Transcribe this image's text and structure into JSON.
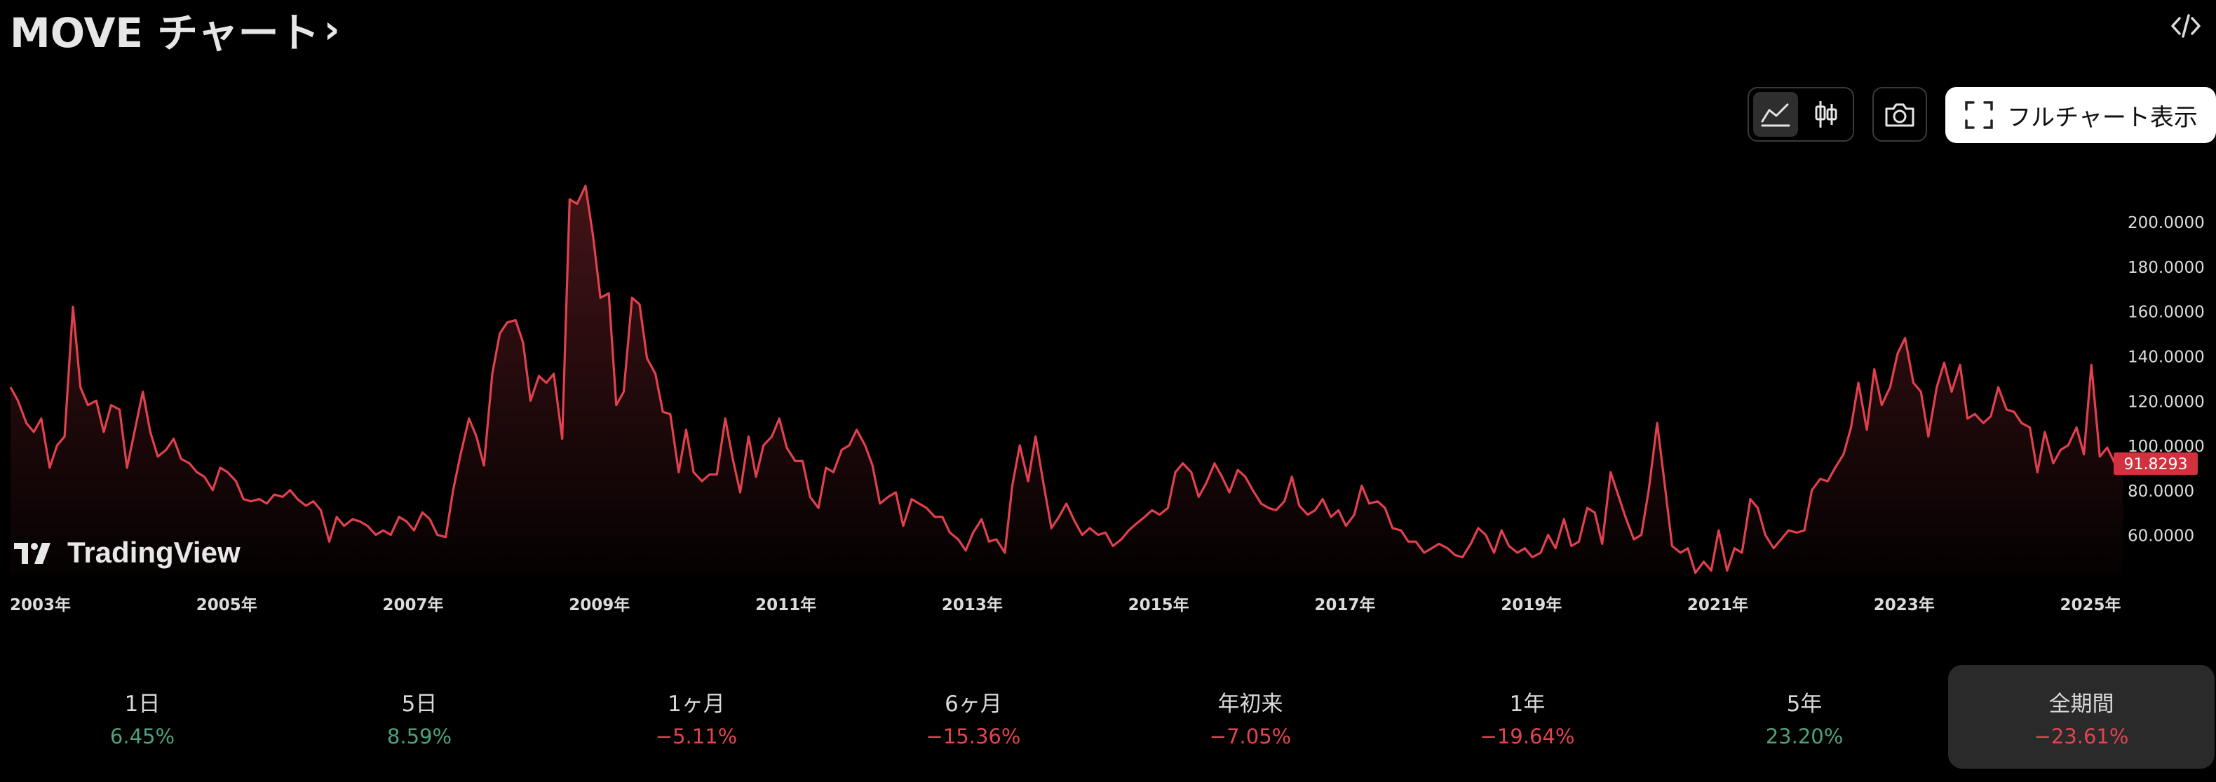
{
  "header": {
    "title": "MOVE チャート",
    "title_chevron": "›",
    "embed_icon": "code-embed-icon"
  },
  "toolbar": {
    "area_chart_icon": "area-chart-icon",
    "candle_chart_icon": "candlestick-chart-icon",
    "camera_icon": "camera-icon",
    "fullscreen_icon": "fullscreen-frame-icon",
    "full_chart_label": "フルチャート表示"
  },
  "watermark": "TradingView",
  "periods": [
    {
      "label": "1日",
      "value": "6.45%",
      "sign": "pos"
    },
    {
      "label": "5日",
      "value": "8.59%",
      "sign": "pos"
    },
    {
      "label": "1ヶ月",
      "value": "−5.11%",
      "sign": "neg"
    },
    {
      "label": "6ヶ月",
      "value": "−15.36%",
      "sign": "neg"
    },
    {
      "label": "年初来",
      "value": "−7.05%",
      "sign": "neg"
    },
    {
      "label": "1年",
      "value": "−19.64%",
      "sign": "neg"
    },
    {
      "label": "5年",
      "value": "23.20%",
      "sign": "pos"
    },
    {
      "label": "全期間",
      "value": "−23.61%",
      "sign": "neg",
      "active": true
    }
  ],
  "colors": {
    "line": "#e0414d",
    "positive": "#4fa07c",
    "negative": "#e0454f",
    "background": "#000000"
  },
  "chart_data": {
    "type": "area",
    "title": "",
    "xlabel": "",
    "ylabel": "",
    "x_tick_labels": [
      "2003年",
      "2005年",
      "2007年",
      "2009年",
      "2011年",
      "2013年",
      "2015年",
      "2017年",
      "2019年",
      "2021年",
      "2023年",
      "2025年"
    ],
    "y_tick_labels": [
      "60.0000",
      "80.0000",
      "100.0000",
      "120.0000",
      "140.0000",
      "160.0000",
      "180.0000",
      "200.0000"
    ],
    "y_ticks": [
      60,
      80,
      100,
      120,
      140,
      160,
      180,
      200
    ],
    "xlim": [
      2003.0,
      2025.35
    ],
    "ylim": [
      42,
      222
    ],
    "last_value": 91.8293,
    "last_value_label": "91.8293",
    "grid": false,
    "series": [
      {
        "points": [
          [
            2003.0,
            126
          ],
          [
            2003.08,
            120
          ],
          [
            2003.17,
            110
          ],
          [
            2003.25,
            106
          ],
          [
            2003.33,
            112
          ],
          [
            2003.42,
            90
          ],
          [
            2003.5,
            100
          ],
          [
            2003.58,
            104
          ],
          [
            2003.67,
            162
          ],
          [
            2003.75,
            126
          ],
          [
            2003.83,
            118
          ],
          [
            2003.92,
            120
          ],
          [
            2004.0,
            106
          ],
          [
            2004.08,
            118
          ],
          [
            2004.17,
            116
          ],
          [
            2004.25,
            90
          ],
          [
            2004.33,
            106
          ],
          [
            2004.42,
            124
          ],
          [
            2004.5,
            106
          ],
          [
            2004.58,
            95
          ],
          [
            2004.67,
            98
          ],
          [
            2004.75,
            103
          ],
          [
            2004.83,
            94
          ],
          [
            2004.92,
            92
          ],
          [
            2005.0,
            88
          ],
          [
            2005.08,
            86
          ],
          [
            2005.17,
            80
          ],
          [
            2005.25,
            90
          ],
          [
            2005.33,
            88
          ],
          [
            2005.42,
            84
          ],
          [
            2005.5,
            76
          ],
          [
            2005.58,
            75
          ],
          [
            2005.67,
            76
          ],
          [
            2005.75,
            74
          ],
          [
            2005.83,
            78
          ],
          [
            2005.92,
            77
          ],
          [
            2006.0,
            80
          ],
          [
            2006.08,
            76
          ],
          [
            2006.17,
            73
          ],
          [
            2006.25,
            75
          ],
          [
            2006.33,
            71
          ],
          [
            2006.42,
            57
          ],
          [
            2006.5,
            68
          ],
          [
            2006.58,
            64
          ],
          [
            2006.67,
            67
          ],
          [
            2006.75,
            66
          ],
          [
            2006.83,
            64
          ],
          [
            2006.92,
            60
          ],
          [
            2007.0,
            62
          ],
          [
            2007.08,
            60
          ],
          [
            2007.17,
            68
          ],
          [
            2007.25,
            66
          ],
          [
            2007.33,
            62
          ],
          [
            2007.42,
            70
          ],
          [
            2007.5,
            67
          ],
          [
            2007.58,
            60
          ],
          [
            2007.67,
            59
          ],
          [
            2007.75,
            80
          ],
          [
            2007.83,
            96
          ],
          [
            2007.92,
            112
          ],
          [
            2008.0,
            104
          ],
          [
            2008.08,
            91
          ],
          [
            2008.17,
            132
          ],
          [
            2008.25,
            150
          ],
          [
            2008.33,
            155
          ],
          [
            2008.42,
            156
          ],
          [
            2008.5,
            146
          ],
          [
            2008.58,
            120
          ],
          [
            2008.67,
            131
          ],
          [
            2008.75,
            128
          ],
          [
            2008.83,
            132
          ],
          [
            2008.92,
            103
          ],
          [
            2009.0,
            210
          ],
          [
            2009.08,
            208
          ],
          [
            2009.17,
            216
          ],
          [
            2009.25,
            194
          ],
          [
            2009.33,
            166
          ],
          [
            2009.42,
            168
          ],
          [
            2009.5,
            118
          ],
          [
            2009.58,
            124
          ],
          [
            2009.67,
            166
          ],
          [
            2009.75,
            163
          ],
          [
            2009.83,
            139
          ],
          [
            2009.92,
            132
          ],
          [
            2010.0,
            115
          ],
          [
            2010.08,
            114
          ],
          [
            2010.17,
            88
          ],
          [
            2010.25,
            107
          ],
          [
            2010.33,
            88
          ],
          [
            2010.42,
            84
          ],
          [
            2010.5,
            87
          ],
          [
            2010.58,
            87
          ],
          [
            2010.67,
            112
          ],
          [
            2010.75,
            94
          ],
          [
            2010.83,
            79
          ],
          [
            2010.92,
            104
          ],
          [
            2011.0,
            86
          ],
          [
            2011.08,
            100
          ],
          [
            2011.17,
            104
          ],
          [
            2011.25,
            112
          ],
          [
            2011.33,
            99
          ],
          [
            2011.42,
            93
          ],
          [
            2011.5,
            93
          ],
          [
            2011.58,
            77
          ],
          [
            2011.67,
            72
          ],
          [
            2011.75,
            90
          ],
          [
            2011.83,
            88
          ],
          [
            2011.92,
            98
          ],
          [
            2012.0,
            100
          ],
          [
            2012.08,
            107
          ],
          [
            2012.17,
            100
          ],
          [
            2012.25,
            91
          ],
          [
            2012.33,
            74
          ],
          [
            2012.42,
            77
          ],
          [
            2012.5,
            79
          ],
          [
            2012.58,
            64
          ],
          [
            2012.67,
            76
          ],
          [
            2012.75,
            74
          ],
          [
            2012.83,
            72
          ],
          [
            2012.92,
            68
          ],
          [
            2013.0,
            68
          ],
          [
            2013.08,
            61
          ],
          [
            2013.17,
            58
          ],
          [
            2013.25,
            53
          ],
          [
            2013.33,
            61
          ],
          [
            2013.42,
            67
          ],
          [
            2013.5,
            57
          ],
          [
            2013.58,
            58
          ],
          [
            2013.67,
            52
          ],
          [
            2013.75,
            82
          ],
          [
            2013.83,
            100
          ],
          [
            2013.92,
            84
          ],
          [
            2014.0,
            104
          ],
          [
            2014.08,
            84
          ],
          [
            2014.17,
            63
          ],
          [
            2014.25,
            68
          ],
          [
            2014.33,
            74
          ],
          [
            2014.42,
            66
          ],
          [
            2014.5,
            60
          ],
          [
            2014.58,
            63
          ],
          [
            2014.67,
            60
          ],
          [
            2014.75,
            61
          ],
          [
            2014.83,
            55
          ],
          [
            2014.92,
            58
          ],
          [
            2015.0,
            62
          ],
          [
            2015.08,
            65
          ],
          [
            2015.17,
            68
          ],
          [
            2015.25,
            71
          ],
          [
            2015.33,
            69
          ],
          [
            2015.42,
            72
          ],
          [
            2015.5,
            88
          ],
          [
            2015.58,
            92
          ],
          [
            2015.67,
            88
          ],
          [
            2015.75,
            77
          ],
          [
            2015.83,
            83
          ],
          [
            2015.92,
            92
          ],
          [
            2016.0,
            86
          ],
          [
            2016.08,
            79
          ],
          [
            2016.17,
            89
          ],
          [
            2016.25,
            86
          ],
          [
            2016.33,
            80
          ],
          [
            2016.42,
            74
          ],
          [
            2016.5,
            72
          ],
          [
            2016.58,
            71
          ],
          [
            2016.67,
            75
          ],
          [
            2016.75,
            86
          ],
          [
            2016.83,
            73
          ],
          [
            2016.92,
            69
          ],
          [
            2017.0,
            71
          ],
          [
            2017.08,
            76
          ],
          [
            2017.17,
            68
          ],
          [
            2017.25,
            71
          ],
          [
            2017.33,
            64
          ],
          [
            2017.42,
            69
          ],
          [
            2017.5,
            82
          ],
          [
            2017.58,
            74
          ],
          [
            2017.67,
            75
          ],
          [
            2017.75,
            72
          ],
          [
            2017.83,
            63
          ],
          [
            2017.92,
            62
          ],
          [
            2018.0,
            57
          ],
          [
            2018.08,
            57
          ],
          [
            2018.17,
            52
          ],
          [
            2018.25,
            54
          ],
          [
            2018.33,
            56
          ],
          [
            2018.42,
            54
          ],
          [
            2018.5,
            51
          ],
          [
            2018.58,
            50
          ],
          [
            2018.67,
            56
          ],
          [
            2018.75,
            63
          ],
          [
            2018.83,
            60
          ],
          [
            2018.92,
            52
          ],
          [
            2019.0,
            62
          ],
          [
            2019.08,
            55
          ],
          [
            2019.17,
            52
          ],
          [
            2019.25,
            54
          ],
          [
            2019.33,
            50
          ],
          [
            2019.42,
            52
          ],
          [
            2019.5,
            60
          ],
          [
            2019.58,
            54
          ],
          [
            2019.67,
            67
          ],
          [
            2019.75,
            55
          ],
          [
            2019.83,
            57
          ],
          [
            2019.92,
            72
          ],
          [
            2020.0,
            70
          ],
          [
            2020.08,
            56
          ],
          [
            2020.17,
            88
          ],
          [
            2020.25,
            78
          ],
          [
            2020.33,
            68
          ],
          [
            2020.42,
            58
          ],
          [
            2020.5,
            60
          ],
          [
            2020.58,
            80
          ],
          [
            2020.67,
            110
          ],
          [
            2020.75,
            83
          ],
          [
            2020.83,
            55
          ],
          [
            2020.92,
            52
          ],
          [
            2021.0,
            54
          ],
          [
            2021.08,
            43
          ],
          [
            2021.17,
            48
          ],
          [
            2021.25,
            44
          ],
          [
            2021.33,
            62
          ],
          [
            2021.42,
            44
          ],
          [
            2021.5,
            54
          ],
          [
            2021.58,
            52
          ],
          [
            2021.67,
            76
          ],
          [
            2021.75,
            72
          ],
          [
            2021.83,
            60
          ],
          [
            2021.92,
            54
          ],
          [
            2022.0,
            58
          ],
          [
            2022.08,
            62
          ],
          [
            2022.17,
            61
          ],
          [
            2022.25,
            62
          ],
          [
            2022.33,
            80
          ],
          [
            2022.42,
            85
          ],
          [
            2022.5,
            84
          ],
          [
            2022.58,
            90
          ],
          [
            2022.67,
            96
          ],
          [
            2022.75,
            108
          ],
          [
            2022.83,
            128
          ],
          [
            2022.92,
            107
          ],
          [
            2023.0,
            134
          ],
          [
            2023.08,
            118
          ],
          [
            2023.17,
            126
          ],
          [
            2023.25,
            141
          ],
          [
            2023.33,
            148
          ],
          [
            2023.42,
            128
          ],
          [
            2023.5,
            124
          ],
          [
            2023.58,
            104
          ],
          [
            2023.67,
            126
          ],
          [
            2023.75,
            137
          ],
          [
            2023.83,
            124
          ],
          [
            2023.92,
            136
          ],
          [
            2024.0,
            112
          ],
          [
            2024.08,
            114
          ],
          [
            2024.17,
            110
          ],
          [
            2024.25,
            113
          ],
          [
            2024.33,
            126
          ],
          [
            2024.42,
            116
          ],
          [
            2024.5,
            115
          ],
          [
            2024.58,
            110
          ],
          [
            2024.67,
            108
          ],
          [
            2024.75,
            88
          ],
          [
            2024.83,
            106
          ],
          [
            2024.92,
            92
          ],
          [
            2025.0,
            98
          ],
          [
            2025.08,
            100
          ],
          [
            2025.17,
            108
          ],
          [
            2025.25,
            96
          ],
          [
            2025.33,
            136
          ],
          [
            2025.42,
            95
          ],
          [
            2025.5,
            99
          ],
          [
            2025.58,
            92
          ],
          [
            2025.67,
            91.83
          ]
        ]
      }
    ]
  }
}
